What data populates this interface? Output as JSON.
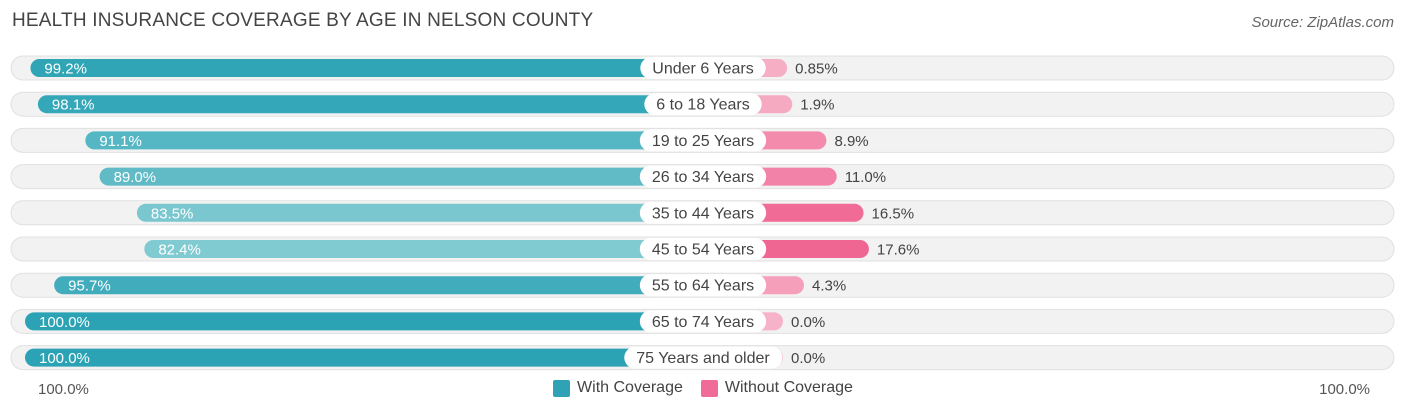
{
  "title": "HEALTH INSURANCE COVERAGE BY AGE IN NELSON COUNTY",
  "source": "Source: ZipAtlas.com",
  "colors": {
    "with_coverage": "#2fa3b5",
    "without_coverage": "#f06b97",
    "row_bg": "#f1f1f1"
  },
  "chart_data": {
    "type": "bar",
    "orientation": "horizontal-diverging",
    "title": "HEALTH INSURANCE COVERAGE BY AGE IN NELSON COUNTY",
    "categories": [
      "Under 6 Years",
      "6 to 18 Years",
      "19 to 25 Years",
      "26 to 34 Years",
      "35 to 44 Years",
      "45 to 54 Years",
      "55 to 64 Years",
      "65 to 74 Years",
      "75 Years and older"
    ],
    "series": [
      {
        "name": "With Coverage",
        "values": [
          99.2,
          98.1,
          91.1,
          89.0,
          83.5,
          82.4,
          95.7,
          100.0,
          100.0
        ],
        "labels": [
          "99.2%",
          "98.1%",
          "91.1%",
          "89.0%",
          "83.5%",
          "82.4%",
          "95.7%",
          "100.0%",
          "100.0%"
        ]
      },
      {
        "name": "Without Coverage",
        "values": [
          0.85,
          1.9,
          8.9,
          11.0,
          16.5,
          17.6,
          4.3,
          0.0,
          0.0
        ],
        "labels": [
          "0.85%",
          "1.9%",
          "8.9%",
          "11.0%",
          "16.5%",
          "17.6%",
          "4.3%",
          "0.0%",
          "0.0%"
        ]
      }
    ],
    "axis_left_label": "100.0%",
    "axis_right_label": "100.0%",
    "xlim": [
      0,
      100
    ]
  },
  "legend": {
    "with_label": "With Coverage",
    "without_label": "Without Coverage"
  }
}
